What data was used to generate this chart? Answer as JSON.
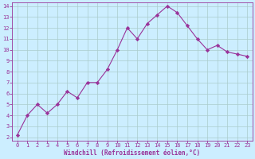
{
  "x": [
    0,
    1,
    2,
    3,
    4,
    5,
    6,
    7,
    8,
    9,
    10,
    11,
    12,
    13,
    14,
    15,
    16,
    17,
    18,
    19,
    20,
    21,
    22,
    23
  ],
  "y": [
    2.2,
    4.0,
    5.0,
    4.2,
    5.0,
    6.2,
    5.6,
    7.0,
    7.0,
    8.2,
    10.0,
    12.0,
    11.0,
    12.4,
    13.2,
    14.0,
    13.4,
    12.2,
    11.0,
    10.0,
    10.4,
    9.8,
    9.6,
    9.4
  ],
  "line_color": "#993399",
  "marker": "D",
  "marker_size": 2.2,
  "bg_color": "#cceeff",
  "grid_color": "#aacccc",
  "xlabel": "Windchill (Refroidissement éolien,°C)",
  "xlabel_color": "#993399",
  "tick_color": "#993399",
  "axis_color": "#993399",
  "ylim": [
    2,
    14
  ],
  "xlim": [
    -0.5,
    23.5
  ],
  "yticks": [
    2,
    3,
    4,
    5,
    6,
    7,
    8,
    9,
    10,
    11,
    12,
    13,
    14
  ],
  "xticks": [
    0,
    1,
    2,
    3,
    4,
    5,
    6,
    7,
    8,
    9,
    10,
    11,
    12,
    13,
    14,
    15,
    16,
    17,
    18,
    19,
    20,
    21,
    22,
    23
  ],
  "tick_fontsize": 5.0,
  "xlabel_fontsize": 5.5
}
